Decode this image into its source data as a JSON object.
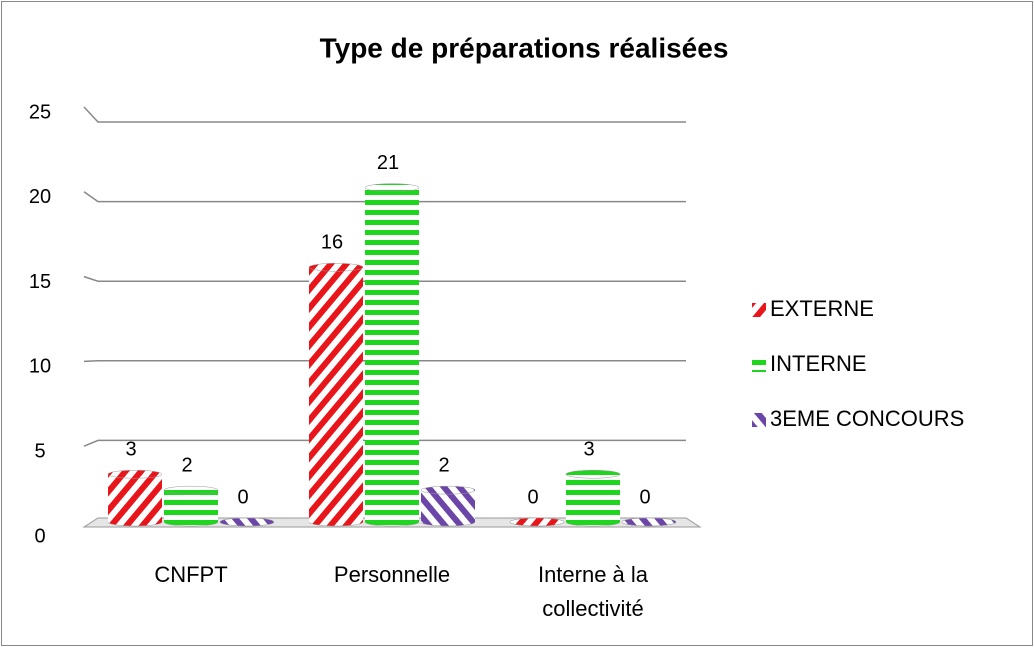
{
  "chart_data": {
    "type": "bar",
    "title": "Type de préparations réalisées",
    "categories": [
      "CNFPT",
      "Personnelle",
      "Interne à la collectivité"
    ],
    "series": [
      {
        "name": "EXTERNE",
        "color": "#e8161b",
        "values": [
          3,
          16,
          0
        ]
      },
      {
        "name": "INTERNE",
        "color": "#1fd61f",
        "values": [
          2,
          21,
          3
        ]
      },
      {
        "name": "3EME CONCOURS",
        "color": "#6b45a8",
        "values": [
          0,
          2,
          0
        ]
      }
    ],
    "ylim": [
      0,
      25
    ],
    "yticks": [
      0,
      5,
      10,
      15,
      20,
      25
    ],
    "grid": true,
    "legend": "right"
  }
}
